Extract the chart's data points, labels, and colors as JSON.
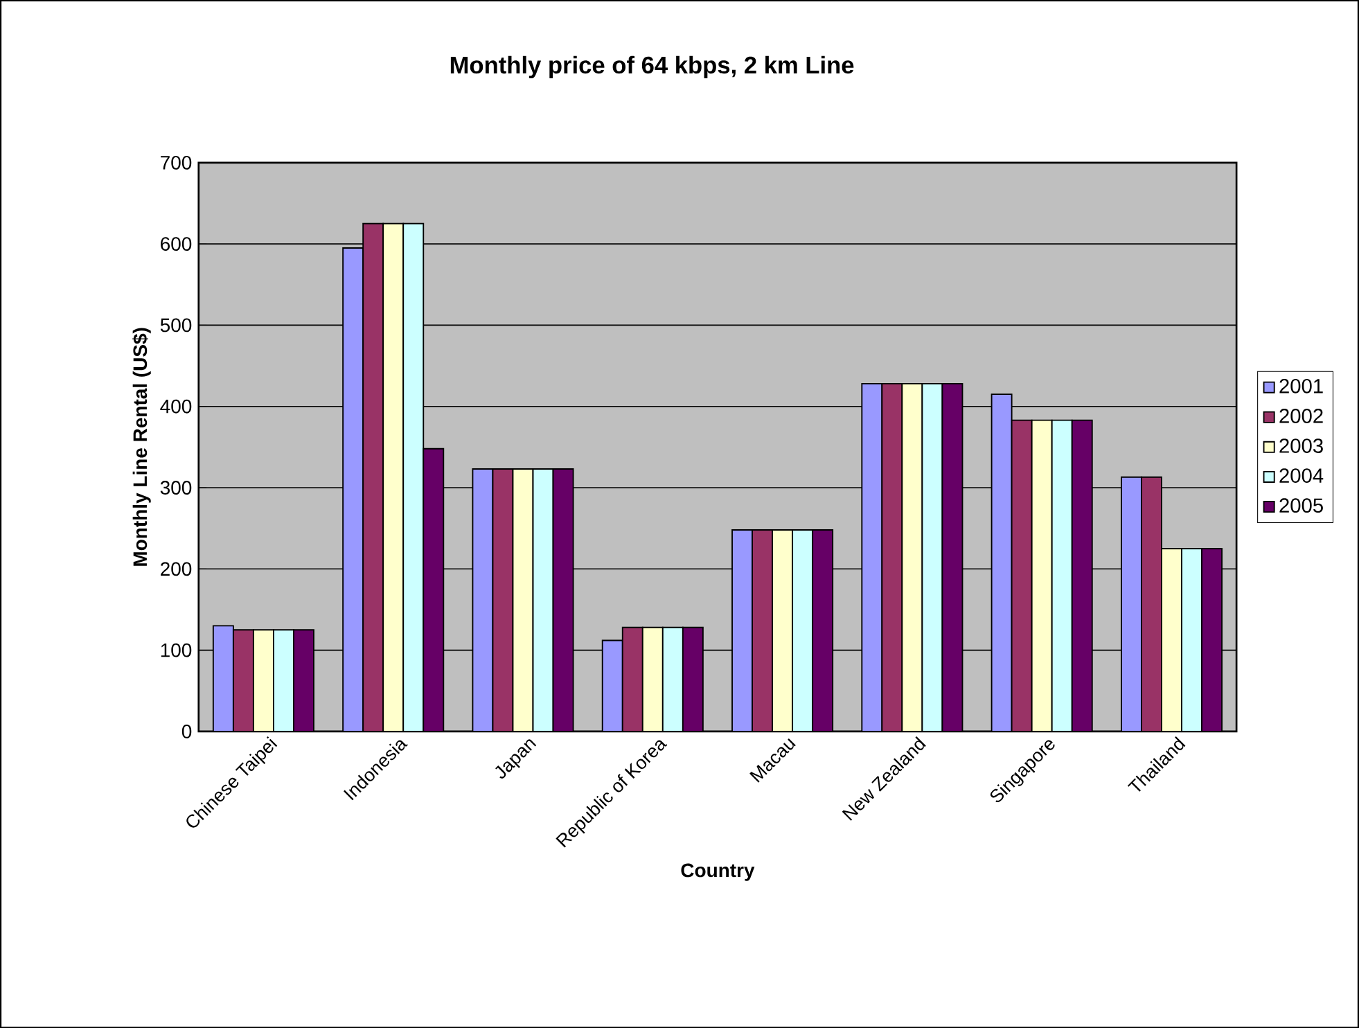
{
  "chart_data": {
    "type": "bar",
    "title": "Monthly price of 64 kbps, 2 km Line",
    "xlabel": "Country",
    "ylabel": "Monthly Line Rental (US$)",
    "categories": [
      "Chinese Taipei",
      "Indonesia",
      "Japan",
      "Republic of Korea",
      "Macau",
      "New Zealand",
      "Singapore",
      "Thailand"
    ],
    "series": [
      {
        "name": "2001",
        "color": "#9999ff",
        "values": [
          130,
          595,
          323,
          112,
          248,
          428,
          415,
          313
        ]
      },
      {
        "name": "2002",
        "color": "#993366",
        "values": [
          125,
          625,
          323,
          128,
          248,
          428,
          383,
          313
        ]
      },
      {
        "name": "2003",
        "color": "#ffffcc",
        "values": [
          125,
          625,
          323,
          128,
          248,
          428,
          383,
          225
        ]
      },
      {
        "name": "2004",
        "color": "#ccffff",
        "values": [
          125,
          625,
          323,
          128,
          248,
          428,
          383,
          225
        ]
      },
      {
        "name": "2005",
        "color": "#660066",
        "values": [
          125,
          348,
          323,
          128,
          248,
          428,
          383,
          225
        ]
      }
    ],
    "ylim": [
      0,
      700
    ],
    "yticks": [
      0,
      100,
      200,
      300,
      400,
      500,
      600,
      700
    ],
    "grid": "y",
    "legend": "right"
  }
}
